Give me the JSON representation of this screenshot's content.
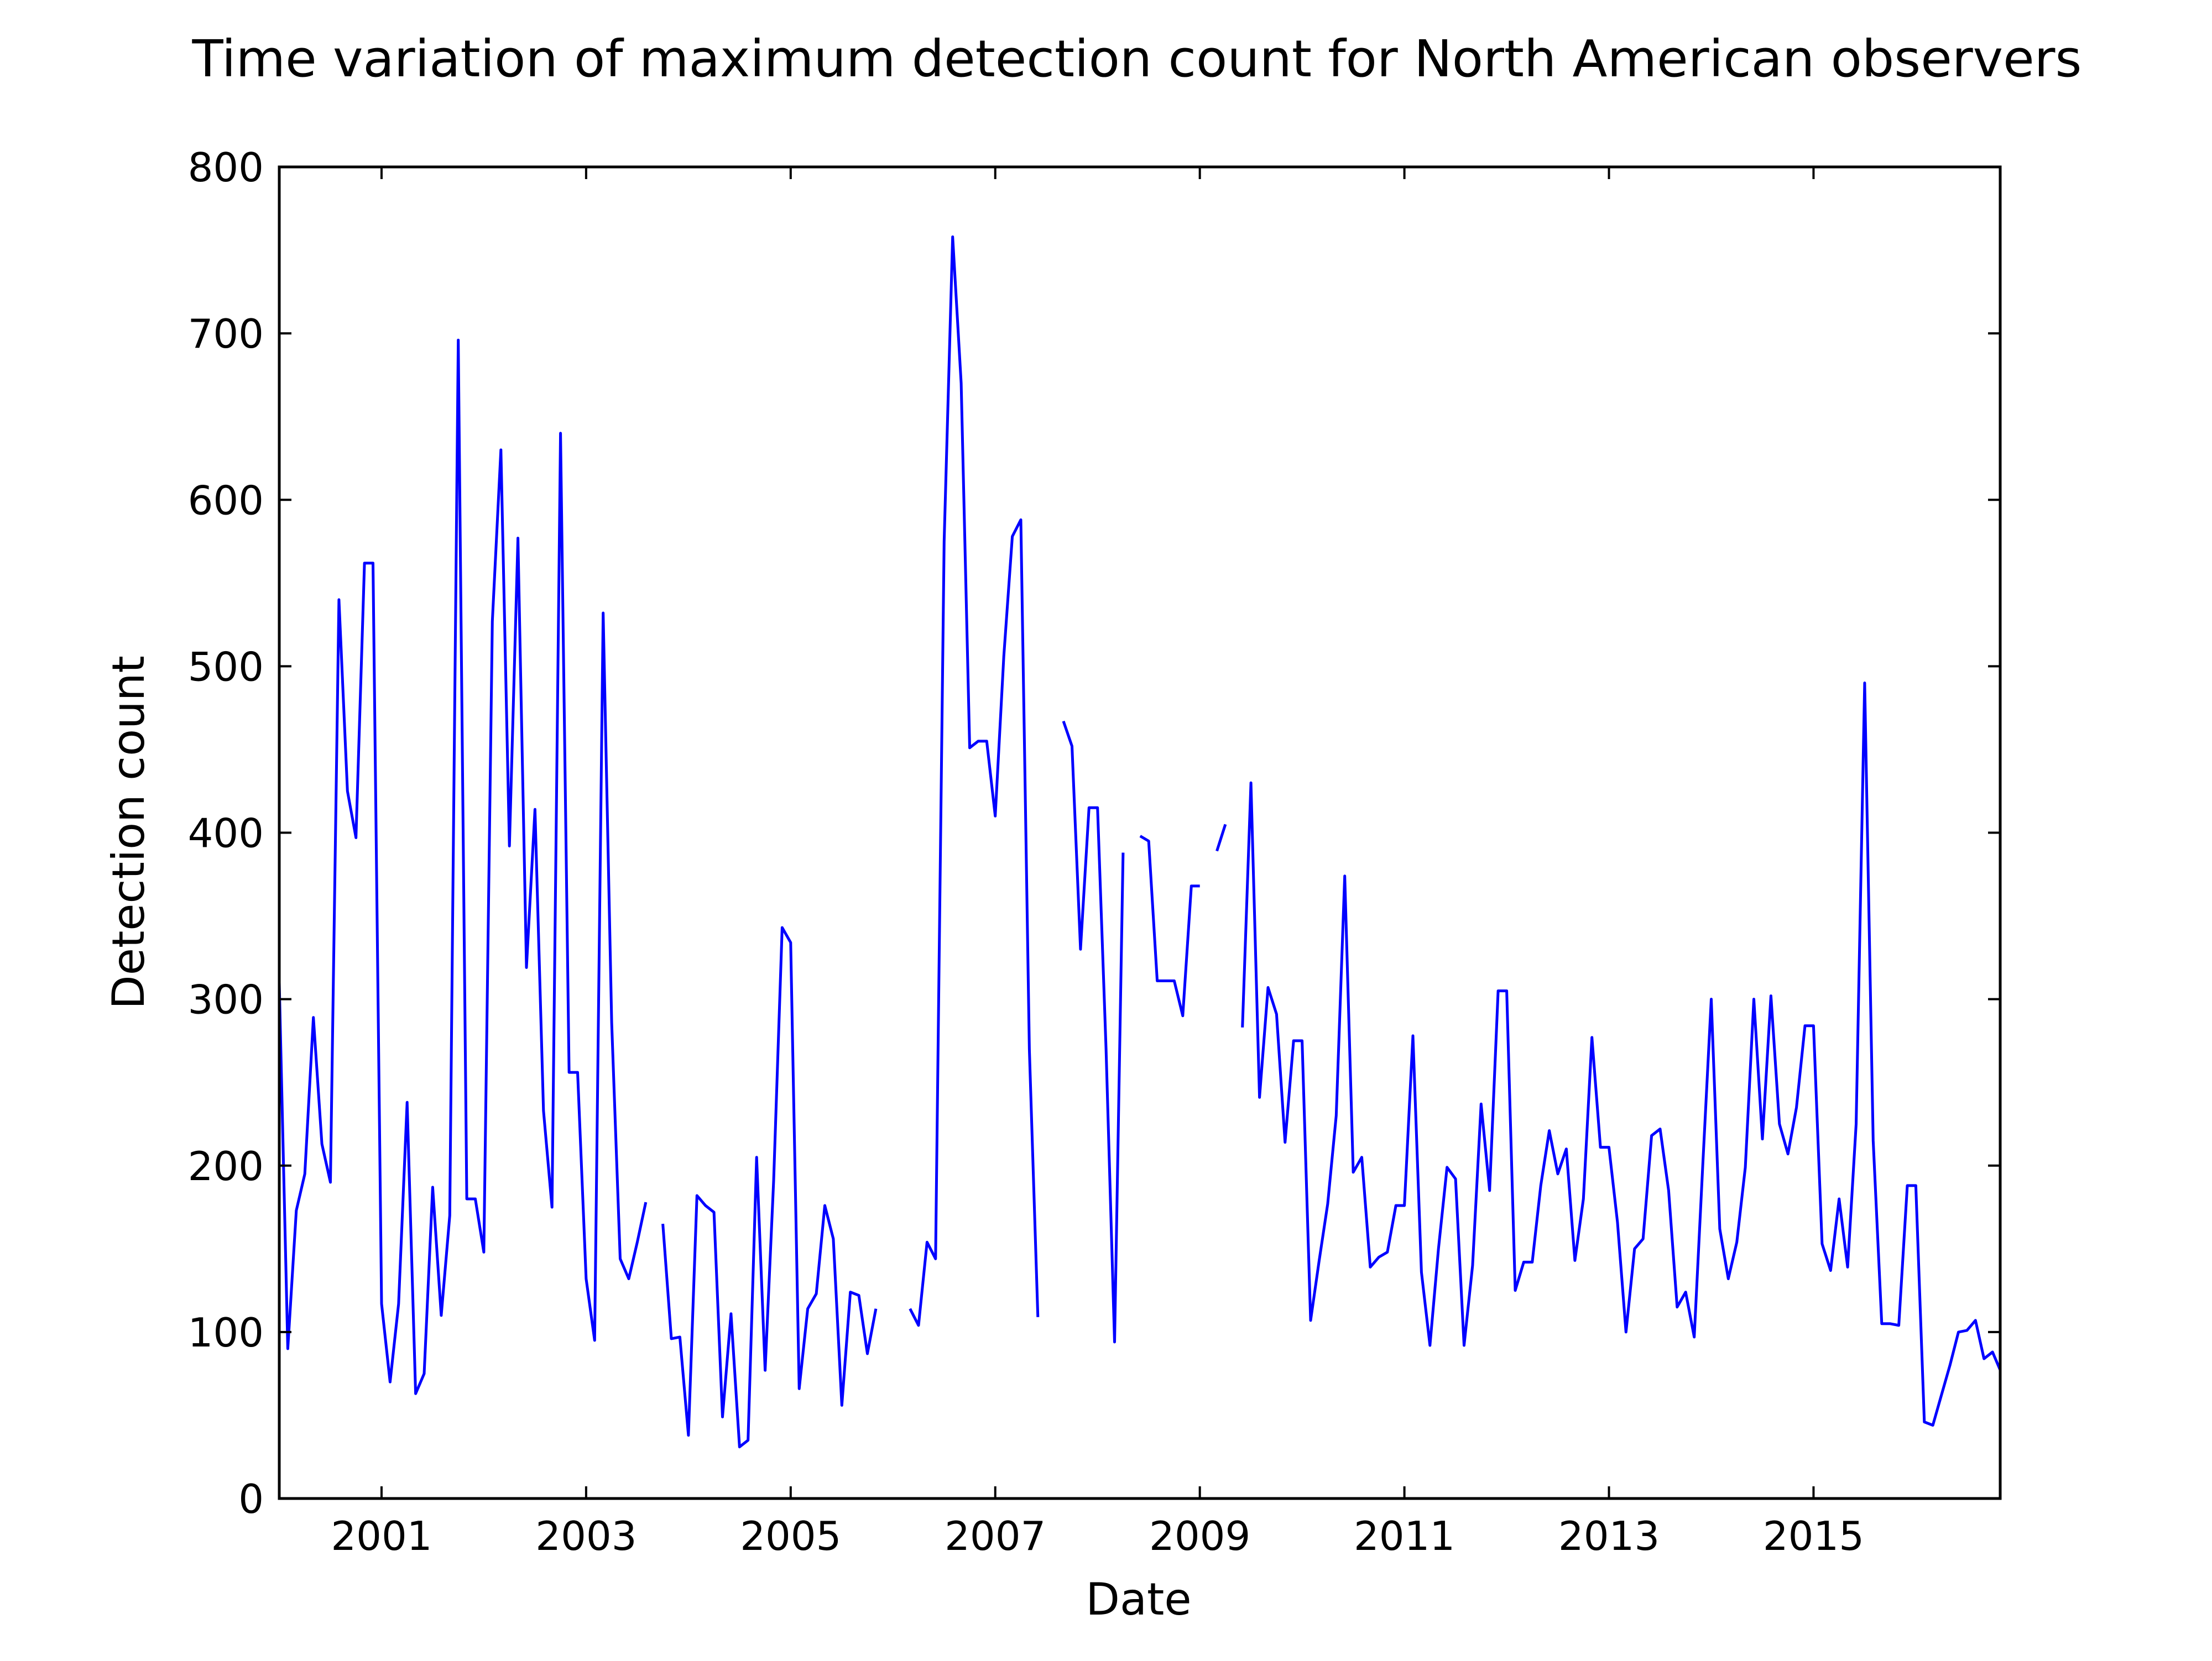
{
  "chart_data": {
    "type": "line",
    "title": "Time variation of maximum detection count for North American observers",
    "xlabel": "Date",
    "ylabel": "Detection count",
    "xlim": [
      "2000-01",
      "2016-10"
    ],
    "ylim": [
      0,
      800
    ],
    "x_ticks": [
      "2001",
      "2003",
      "2005",
      "2007",
      "2009",
      "2011",
      "2013",
      "2015"
    ],
    "y_ticks": [
      0,
      100,
      200,
      300,
      400,
      500,
      600,
      700,
      800
    ],
    "grid": false,
    "line_color": "#0000ff",
    "series": [
      {
        "points": [
          [
            "2000-01",
            310
          ],
          [
            "2000-02",
            90
          ],
          [
            "2000-03",
            173
          ],
          [
            "2000-04",
            195
          ],
          [
            "2000-05",
            289
          ],
          [
            "2000-06",
            213
          ],
          [
            "2000-07",
            190
          ],
          [
            "2000-08",
            540
          ],
          [
            "2000-09",
            425
          ],
          [
            "2000-10",
            397
          ],
          [
            "2000-11",
            562
          ],
          [
            "2000-12",
            562
          ],
          [
            "2001-01",
            117
          ],
          [
            "2001-02",
            70
          ],
          [
            "2001-03",
            117
          ],
          [
            "2001-04",
            238
          ],
          [
            "2001-05",
            63
          ],
          [
            "2001-06",
            75
          ],
          [
            "2001-07",
            187
          ],
          [
            "2001-08",
            110
          ],
          [
            "2001-09",
            170
          ],
          [
            "2001-10",
            696
          ],
          [
            "2001-11",
            180
          ],
          [
            "2001-12",
            180
          ],
          [
            "2002-01",
            148
          ],
          [
            "2002-02",
            527
          ],
          [
            "2002-03",
            630
          ],
          [
            "2002-04",
            392
          ],
          [
            "2002-05",
            577
          ],
          [
            "2002-06",
            319
          ],
          [
            "2002-07",
            414
          ],
          [
            "2002-08",
            233
          ],
          [
            "2002-09",
            175
          ],
          [
            "2002-10",
            640
          ],
          [
            "2002-11",
            256
          ],
          [
            "2002-12",
            256
          ],
          [
            "2003-01",
            132
          ],
          [
            "2003-02",
            95
          ],
          [
            "2003-03",
            532
          ],
          [
            "2003-04",
            286
          ],
          [
            "2003-05",
            144
          ],
          [
            "2003-06",
            132
          ],
          [
            "2003-07",
            154
          ],
          [
            "2003-08",
            178
          ],
          [
            "2003-09",
            null
          ],
          [
            "2003-10",
            165
          ],
          [
            "2003-11",
            96
          ],
          [
            "2003-12",
            97
          ],
          [
            "2004-01",
            38
          ],
          [
            "2004-02",
            182
          ],
          [
            "2004-03",
            176
          ],
          [
            "2004-04",
            172
          ],
          [
            "2004-05",
            49
          ],
          [
            "2004-06",
            111
          ],
          [
            "2004-07",
            31
          ],
          [
            "2004-08",
            35
          ],
          [
            "2004-09",
            205
          ],
          [
            "2004-10",
            77
          ],
          [
            "2004-11",
            191
          ],
          [
            "2004-12",
            343
          ],
          [
            "2005-01",
            334
          ],
          [
            "2005-02",
            66
          ],
          [
            "2005-03",
            114
          ],
          [
            "2005-04",
            123
          ],
          [
            "2005-05",
            176
          ],
          [
            "2005-06",
            156
          ],
          [
            "2005-07",
            56
          ],
          [
            "2005-08",
            124
          ],
          [
            "2005-09",
            122
          ],
          [
            "2005-10",
            87
          ],
          [
            "2005-11",
            114
          ],
          [
            "2005-12",
            null
          ],
          [
            "2006-01",
            null
          ],
          [
            "2006-02",
            null
          ],
          [
            "2006-03",
            114
          ],
          [
            "2006-04",
            104
          ],
          [
            "2006-05",
            154
          ],
          [
            "2006-06",
            144
          ],
          [
            "2006-07",
            575
          ],
          [
            "2006-08",
            758
          ],
          [
            "2006-09",
            670
          ],
          [
            "2006-10",
            451
          ],
          [
            "2006-11",
            455
          ],
          [
            "2006-12",
            455
          ],
          [
            "2007-01",
            410
          ],
          [
            "2007-02",
            506
          ],
          [
            "2007-03",
            578
          ],
          [
            "2007-04",
            588
          ],
          [
            "2007-05",
            270
          ],
          [
            "2007-06",
            109
          ],
          [
            "2007-07",
            null
          ],
          [
            "2007-08",
            null
          ],
          [
            "2007-09",
            467
          ],
          [
            "2007-10",
            452
          ],
          [
            "2007-11",
            330
          ],
          [
            "2007-12",
            415
          ],
          [
            "2008-01",
            415
          ],
          [
            "2008-02",
            270
          ],
          [
            "2008-03",
            94
          ],
          [
            "2008-04",
            388
          ],
          [
            "2008-05",
            null
          ],
          [
            "2008-06",
            398
          ],
          [
            "2008-07",
            395
          ],
          [
            "2008-08",
            311
          ],
          [
            "2008-09",
            311
          ],
          [
            "2008-10",
            311
          ],
          [
            "2008-11",
            290
          ],
          [
            "2008-12",
            368
          ],
          [
            "2009-01",
            368
          ],
          [
            "2009-02",
            null
          ],
          [
            "2009-03",
            389
          ],
          [
            "2009-04",
            405
          ],
          [
            "2009-05",
            null
          ],
          [
            "2009-06",
            283
          ],
          [
            "2009-07",
            430
          ],
          [
            "2009-08",
            241
          ],
          [
            "2009-09",
            307
          ],
          [
            "2009-10",
            291
          ],
          [
            "2009-11",
            214
          ],
          [
            "2009-12",
            275
          ],
          [
            "2010-01",
            275
          ],
          [
            "2010-02",
            107
          ],
          [
            "2010-03",
            143
          ],
          [
            "2010-04",
            177
          ],
          [
            "2010-05",
            230
          ],
          [
            "2010-06",
            374
          ],
          [
            "2010-07",
            196
          ],
          [
            "2010-08",
            205
          ],
          [
            "2010-09",
            139
          ],
          [
            "2010-10",
            145
          ],
          [
            "2010-11",
            148
          ],
          [
            "2010-12",
            176
          ],
          [
            "2011-01",
            176
          ],
          [
            "2011-02",
            278
          ],
          [
            "2011-03",
            136
          ],
          [
            "2011-04",
            92
          ],
          [
            "2011-05",
            150
          ],
          [
            "2011-06",
            199
          ],
          [
            "2011-07",
            192
          ],
          [
            "2011-08",
            92
          ],
          [
            "2011-09",
            140
          ],
          [
            "2011-10",
            237
          ],
          [
            "2011-11",
            185
          ],
          [
            "2011-12",
            305
          ],
          [
            "2012-01",
            305
          ],
          [
            "2012-02",
            125
          ],
          [
            "2012-03",
            142
          ],
          [
            "2012-04",
            142
          ],
          [
            "2012-05",
            188
          ],
          [
            "2012-06",
            221
          ],
          [
            "2012-07",
            195
          ],
          [
            "2012-08",
            210
          ],
          [
            "2012-09",
            143
          ],
          [
            "2012-10",
            180
          ],
          [
            "2012-11",
            277
          ],
          [
            "2012-12",
            211
          ],
          [
            "2013-01",
            211
          ],
          [
            "2013-02",
            166
          ],
          [
            "2013-03",
            100
          ],
          [
            "2013-04",
            150
          ],
          [
            "2013-05",
            156
          ],
          [
            "2013-06",
            218
          ],
          [
            "2013-07",
            222
          ],
          [
            "2013-08",
            185
          ],
          [
            "2013-09",
            115
          ],
          [
            "2013-10",
            124
          ],
          [
            "2013-11",
            97
          ],
          [
            "2013-12",
            200
          ],
          [
            "2014-01",
            300
          ],
          [
            "2014-02",
            162
          ],
          [
            "2014-03",
            132
          ],
          [
            "2014-04",
            154
          ],
          [
            "2014-05",
            199
          ],
          [
            "2014-06",
            300
          ],
          [
            "2014-07",
            216
          ],
          [
            "2014-08",
            302
          ],
          [
            "2014-09",
            225
          ],
          [
            "2014-10",
            207
          ],
          [
            "2014-11",
            235
          ],
          [
            "2014-12",
            284
          ],
          [
            "2015-01",
            284
          ],
          [
            "2015-02",
            153
          ],
          [
            "2015-03",
            137
          ],
          [
            "2015-04",
            180
          ],
          [
            "2015-05",
            139
          ],
          [
            "2015-06",
            225
          ],
          [
            "2015-07",
            490
          ],
          [
            "2015-08",
            215
          ],
          [
            "2015-09",
            105
          ],
          [
            "2015-10",
            105
          ],
          [
            "2015-11",
            104
          ],
          [
            "2015-12",
            188
          ],
          [
            "2016-01",
            188
          ],
          [
            "2016-02",
            46
          ],
          [
            "2016-03",
            44
          ],
          [
            "2016-04",
            62
          ],
          [
            "2016-05",
            80
          ],
          [
            "2016-06",
            100
          ],
          [
            "2016-07",
            101
          ],
          [
            "2016-08",
            107
          ],
          [
            "2016-09",
            84
          ],
          [
            "2016-10",
            88
          ],
          [
            "2016-11",
            76
          ]
        ]
      }
    ]
  }
}
